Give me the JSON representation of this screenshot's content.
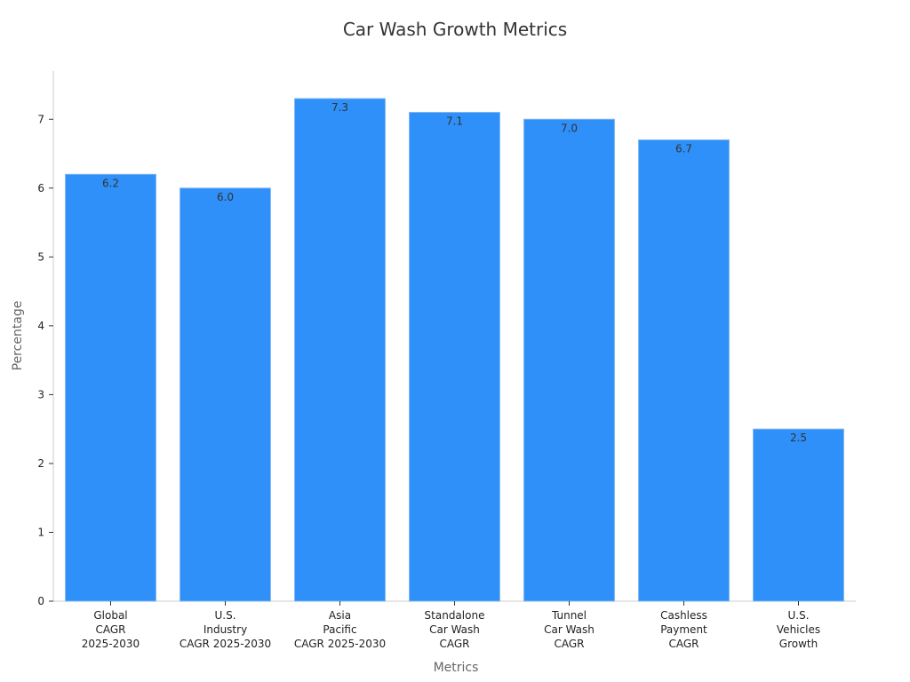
{
  "chart_data": {
    "type": "bar",
    "title": "Car Wash Growth Metrics",
    "xlabel": "Metrics",
    "ylabel": "Percentage",
    "ylim": [
      0,
      7.7
    ],
    "yticks": [
      0,
      1,
      2,
      3,
      4,
      5,
      6,
      7
    ],
    "grid": false,
    "categories": [
      [
        "Global",
        "CAGR",
        "2025-2030"
      ],
      [
        "U.S.",
        "Industry",
        "CAGR 2025-2030"
      ],
      [
        "Asia",
        "Pacific",
        "CAGR 2025-2030"
      ],
      [
        "Standalone",
        "Car Wash",
        "CAGR"
      ],
      [
        "Tunnel",
        "Car Wash",
        "CAGR"
      ],
      [
        "Cashless",
        "Payment",
        "CAGR"
      ],
      [
        "U.S.",
        "Vehicles",
        "Growth"
      ]
    ],
    "values": [
      6.2,
      6.0,
      7.3,
      7.1,
      7.0,
      6.7,
      2.5
    ],
    "data_labels": [
      "6.2",
      "6.0",
      "7.3",
      "7.1",
      "7.0",
      "6.7",
      "2.5"
    ],
    "colors": {
      "bar": "#2e90f8",
      "bar_edge": "#7fb6f2"
    }
  }
}
